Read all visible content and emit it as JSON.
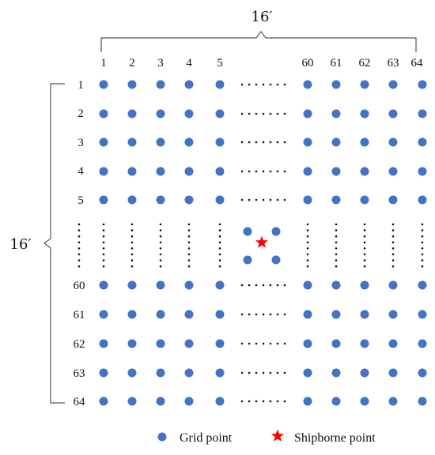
{
  "top_extent_label": "16′",
  "left_extent_label": "16′",
  "column_labels": [
    "1",
    "2",
    "3",
    "4",
    "5",
    "60",
    "61",
    "62",
    "63",
    "64"
  ],
  "row_labels": [
    "1",
    "2",
    "3",
    "4",
    "5",
    "60",
    "61",
    "62",
    "63",
    "64"
  ],
  "legend": {
    "grid_point": "Grid point",
    "shipborne_point": "Shipborne point"
  },
  "colors": {
    "grid_point": "#4472C4",
    "shipborne_point": "#FF0000",
    "lines": "#555555"
  }
}
